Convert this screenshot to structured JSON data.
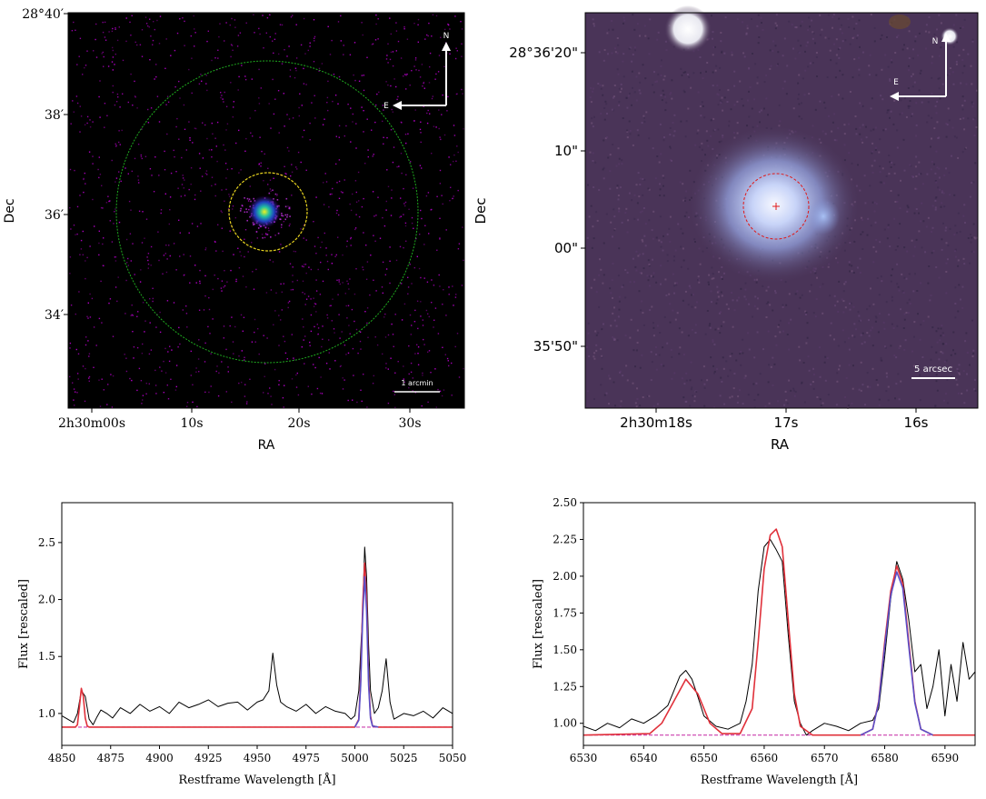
{
  "panels": {
    "xray": {
      "ylabel": "Dec",
      "xlabel": "RA",
      "y_ticks": [
        "28°40′",
        "38′",
        "36′",
        "34′"
      ],
      "x_ticks": [
        "2h30m00s",
        "10s",
        "20s",
        "30s"
      ],
      "compass_n": "N",
      "compass_e": "E",
      "scalebar_label": "1 arcmin",
      "colors": {
        "background": "#000000",
        "noise": "#b400c8",
        "outer_circle": "#1faa1f",
        "inner_circle": "#e6d21e"
      }
    },
    "optical": {
      "ylabel": "Dec",
      "xlabel": "RA",
      "y_ticks": [
        "28°36'20\"",
        "10\"",
        "00\"",
        "35'50\""
      ],
      "x_ticks": [
        "2h30m18s",
        "17s",
        "16s"
      ],
      "compass_n": "N",
      "compass_e": "E",
      "scalebar_label": "5 arcsec",
      "colors": {
        "sky": "#4a3458",
        "galaxy": "#b8c8f0",
        "aperture": "#e01818"
      }
    }
  },
  "chart_data": [
    {
      "type": "line",
      "ylabel": "Flux [rescaled]",
      "xlabel": "Restframe Wavelength [Å]",
      "xlim": [
        4850,
        5050
      ],
      "ylim": [
        0.72,
        2.85
      ],
      "xticks": [
        4850,
        4875,
        4900,
        4925,
        4950,
        4975,
        5000,
        5025,
        5050
      ],
      "yticks": [
        1.0,
        1.5,
        2.0,
        2.5
      ],
      "ytick_labels": [
        "1.0",
        "1.5",
        "2.0",
        "2.5"
      ],
      "continuum": 0.88,
      "series": [
        {
          "role": "observed",
          "color": "#000000",
          "x": [
            4850,
            4853,
            4856,
            4858,
            4860,
            4862,
            4864,
            4866,
            4868,
            4870,
            4873,
            4876,
            4880,
            4885,
            4890,
            4895,
            4900,
            4905,
            4910,
            4915,
            4920,
            4925,
            4930,
            4935,
            4940,
            4945,
            4950,
            4953,
            4956,
            4958,
            4960,
            4962,
            4965,
            4970,
            4975,
            4980,
            4985,
            4990,
            4995,
            4998,
            5000,
            5002,
            5004,
            5005,
            5006,
            5007,
            5008,
            5010,
            5012,
            5014,
            5016,
            5018,
            5020,
            5025,
            5030,
            5035,
            5040,
            5045,
            5050
          ],
          "y": [
            0.98,
            0.95,
            0.92,
            1.0,
            1.2,
            1.15,
            0.95,
            0.9,
            0.97,
            1.03,
            1.0,
            0.96,
            1.05,
            1.0,
            1.08,
            1.02,
            1.06,
            1.0,
            1.1,
            1.05,
            1.08,
            1.12,
            1.06,
            1.09,
            1.1,
            1.03,
            1.1,
            1.12,
            1.2,
            1.53,
            1.25,
            1.1,
            1.06,
            1.02,
            1.08,
            1.0,
            1.06,
            1.02,
            1.0,
            0.95,
            0.98,
            1.2,
            1.9,
            2.46,
            2.2,
            1.6,
            1.2,
            1.0,
            1.05,
            1.2,
            1.48,
            1.1,
            0.95,
            1.0,
            0.98,
            1.02,
            0.96,
            1.05,
            1.0
          ]
        },
        {
          "role": "fit",
          "color": "#e0303a",
          "x": [
            4850,
            4857,
            4858,
            4859,
            4860,
            4861,
            4862,
            4863,
            4864,
            4870,
            5000,
            5002,
            5003,
            5004,
            5005,
            5006,
            5007,
            5008,
            5009,
            5012,
            5050
          ],
          "y": [
            0.88,
            0.88,
            0.9,
            1.05,
            1.22,
            1.15,
            0.96,
            0.89,
            0.88,
            0.88,
            0.88,
            0.95,
            1.3,
            1.95,
            2.32,
            2.0,
            1.3,
            0.98,
            0.89,
            0.88,
            0.88
          ]
        },
        {
          "role": "component",
          "color": "#5a4fc8",
          "x": [
            5000,
            5002,
            5003,
            5004,
            5005,
            5006,
            5007,
            5008,
            5009,
            5012
          ],
          "y": [
            0.88,
            0.94,
            1.25,
            1.85,
            2.2,
            1.9,
            1.25,
            0.96,
            0.89,
            0.88
          ]
        }
      ]
    },
    {
      "type": "line",
      "ylabel": "Flux [rescaled]",
      "xlabel": "Restframe Wavelength [Å]",
      "xlim": [
        6530,
        6595
      ],
      "ylim": [
        0.85,
        2.5
      ],
      "xticks": [
        6530,
        6540,
        6550,
        6560,
        6570,
        6580,
        6590
      ],
      "yticks": [
        1.0,
        1.25,
        1.5,
        1.75,
        2.0,
        2.25,
        2.5
      ],
      "ytick_labels": [
        "1.00",
        "1.25",
        "1.50",
        "1.75",
        "2.00",
        "2.25",
        "2.50"
      ],
      "continuum": 0.92,
      "series": [
        {
          "role": "observed",
          "color": "#000000",
          "x": [
            6530,
            6532,
            6534,
            6536,
            6538,
            6540,
            6542,
            6544,
            6545,
            6546,
            6547,
            6548,
            6549,
            6550,
            6552,
            6554,
            6556,
            6557,
            6558,
            6559,
            6560,
            6561,
            6562,
            6563,
            6564,
            6565,
            6566,
            6567,
            6568,
            6570,
            6572,
            6574,
            6576,
            6578,
            6579,
            6580,
            6581,
            6582,
            6583,
            6584,
            6585,
            6586,
            6587,
            6588,
            6589,
            6590,
            6591,
            6592,
            6593,
            6594,
            6595
          ],
          "y": [
            0.98,
            0.95,
            1.0,
            0.97,
            1.03,
            1.0,
            1.05,
            1.12,
            1.22,
            1.32,
            1.36,
            1.3,
            1.18,
            1.05,
            0.98,
            0.96,
            1.0,
            1.15,
            1.4,
            1.9,
            2.2,
            2.25,
            2.18,
            2.1,
            1.6,
            1.15,
            1.0,
            0.92,
            0.95,
            1.0,
            0.98,
            0.95,
            1.0,
            1.02,
            1.1,
            1.45,
            1.85,
            2.1,
            1.98,
            1.7,
            1.35,
            1.4,
            1.1,
            1.25,
            1.5,
            1.05,
            1.4,
            1.15,
            1.55,
            1.3,
            1.35
          ]
        },
        {
          "role": "fit",
          "color": "#e0303a",
          "x": [
            6530,
            6541,
            6543,
            6545,
            6547,
            6549,
            6551,
            6553,
            6556,
            6558,
            6559,
            6560,
            6561,
            6562,
            6563,
            6564,
            6565,
            6566,
            6568,
            6576,
            6578,
            6579,
            6580,
            6581,
            6582,
            6583,
            6584,
            6585,
            6586,
            6588,
            6595
          ],
          "y": [
            0.92,
            0.93,
            1.0,
            1.15,
            1.3,
            1.2,
            1.0,
            0.93,
            0.93,
            1.1,
            1.55,
            2.05,
            2.28,
            2.32,
            2.2,
            1.7,
            1.2,
            0.98,
            0.92,
            0.92,
            0.96,
            1.15,
            1.55,
            1.9,
            2.07,
            1.95,
            1.55,
            1.15,
            0.96,
            0.92,
            0.92
          ]
        },
        {
          "role": "component",
          "color": "#5a4fc8",
          "x": [
            6576,
            6578,
            6579,
            6580,
            6581,
            6582,
            6583,
            6584,
            6585,
            6586,
            6588
          ],
          "y": [
            0.92,
            0.96,
            1.14,
            1.52,
            1.87,
            2.03,
            1.92,
            1.52,
            1.14,
            0.96,
            0.92
          ]
        }
      ]
    }
  ]
}
